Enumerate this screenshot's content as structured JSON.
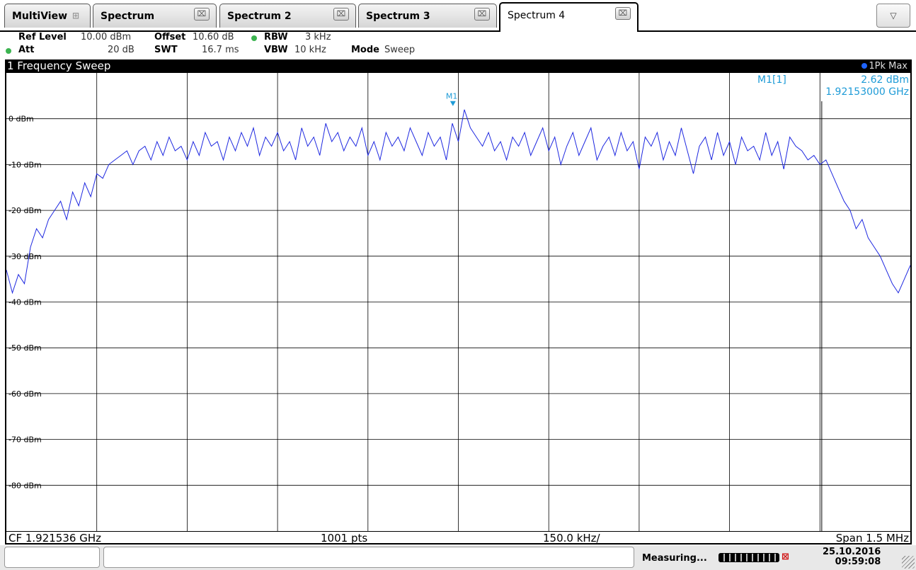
{
  "tabs": {
    "multiview": "MultiView",
    "items": [
      "Spectrum",
      "Spectrum 2",
      "Spectrum 3",
      "Spectrum 4"
    ],
    "active_index": 3,
    "close_glyph": "⌧",
    "menu_glyph": "▽"
  },
  "params": {
    "ref_level_label": "Ref Level",
    "ref_level_value": "10.00 dBm",
    "offset_label": "Offset",
    "offset_value": "10.60 dB",
    "rbw_label": "RBW",
    "rbw_value": "3 kHz",
    "att_label": "Att",
    "att_value": "20 dB",
    "swt_label": "SWT",
    "swt_value": "16.7 ms",
    "vbw_label": "VBW",
    "vbw_value": "10 kHz",
    "mode_label": "Mode",
    "mode_value": "Sweep"
  },
  "window": {
    "title": "1 Frequency Sweep",
    "trace_info": "1Pk Max"
  },
  "marker": {
    "name": "M1[1]",
    "level": "2.62 dBm",
    "frequency": "1.92153000 GHz",
    "label": "M1"
  },
  "footer": {
    "cf": "CF 1.921536 GHz",
    "pts": "1001 pts",
    "div": "150.0 kHz/",
    "span": "Span 1.5 MHz"
  },
  "status": {
    "message": "Measuring...",
    "date": "25.10.2016",
    "time": "09:59:08"
  },
  "colors": {
    "trace": "#1e28e0",
    "marker": "#1e9bd7",
    "grid": "#000000"
  },
  "chart_data": {
    "type": "line",
    "ylim": [
      -90,
      10
    ],
    "yticks": [
      0,
      -10,
      -20,
      -30,
      -40,
      -50,
      -60,
      -70,
      -80
    ],
    "ytick_labels": [
      "0 dBm",
      "-10 dBm",
      "-20 dBm",
      "-30 dBm",
      "-40 dBm",
      "-50 dBm",
      "-60 dBm",
      "-70 dBm",
      "-80 dBm"
    ],
    "x_divisions": 10,
    "grid": true,
    "marker": {
      "x_div": 4.94,
      "y": 2.62
    },
    "marker_line_x_div": 9.02,
    "series": [
      {
        "values": [
          -33,
          -38,
          -34,
          -36,
          -28,
          -24,
          -26,
          -22,
          -20,
          -18,
          -22,
          -16,
          -19,
          -14,
          -17,
          -12,
          -13,
          -10,
          -9,
          -8,
          -7,
          -10,
          -7,
          -6,
          -9,
          -5,
          -8,
          -4,
          -7,
          -6,
          -9,
          -5,
          -8,
          -3,
          -6,
          -5,
          -9,
          -4,
          -7,
          -3,
          -6,
          -2,
          -8,
          -4,
          -6,
          -3,
          -7,
          -5,
          -9,
          -2,
          -6,
          -4,
          -8,
          -1,
          -5,
          -3,
          -7,
          -4,
          -6,
          -2,
          -8,
          -5,
          -9,
          -3,
          -6,
          -4,
          -7,
          -2,
          -5,
          -8,
          -3,
          -6,
          -4,
          -9,
          -1,
          -5,
          2,
          -2,
          -4,
          -6,
          -3,
          -7,
          -5,
          -9,
          -4,
          -6,
          -3,
          -8,
          -5,
          -2,
          -7,
          -4,
          -10,
          -6,
          -3,
          -8,
          -5,
          -2,
          -9,
          -6,
          -4,
          -8,
          -3,
          -7,
          -5,
          -11,
          -4,
          -6,
          -3,
          -9,
          -5,
          -8,
          -2,
          -7,
          -12,
          -6,
          -4,
          -9,
          -3,
          -8,
          -5,
          -10,
          -4,
          -7,
          -6,
          -9,
          -3,
          -8,
          -5,
          -11,
          -4,
          -6,
          -7,
          -9,
          -8,
          -10,
          -9,
          -12,
          -15,
          -18,
          -20,
          -24,
          -22,
          -26,
          -28,
          -30,
          -33,
          -36,
          -38,
          -35,
          -32
        ]
      }
    ]
  }
}
